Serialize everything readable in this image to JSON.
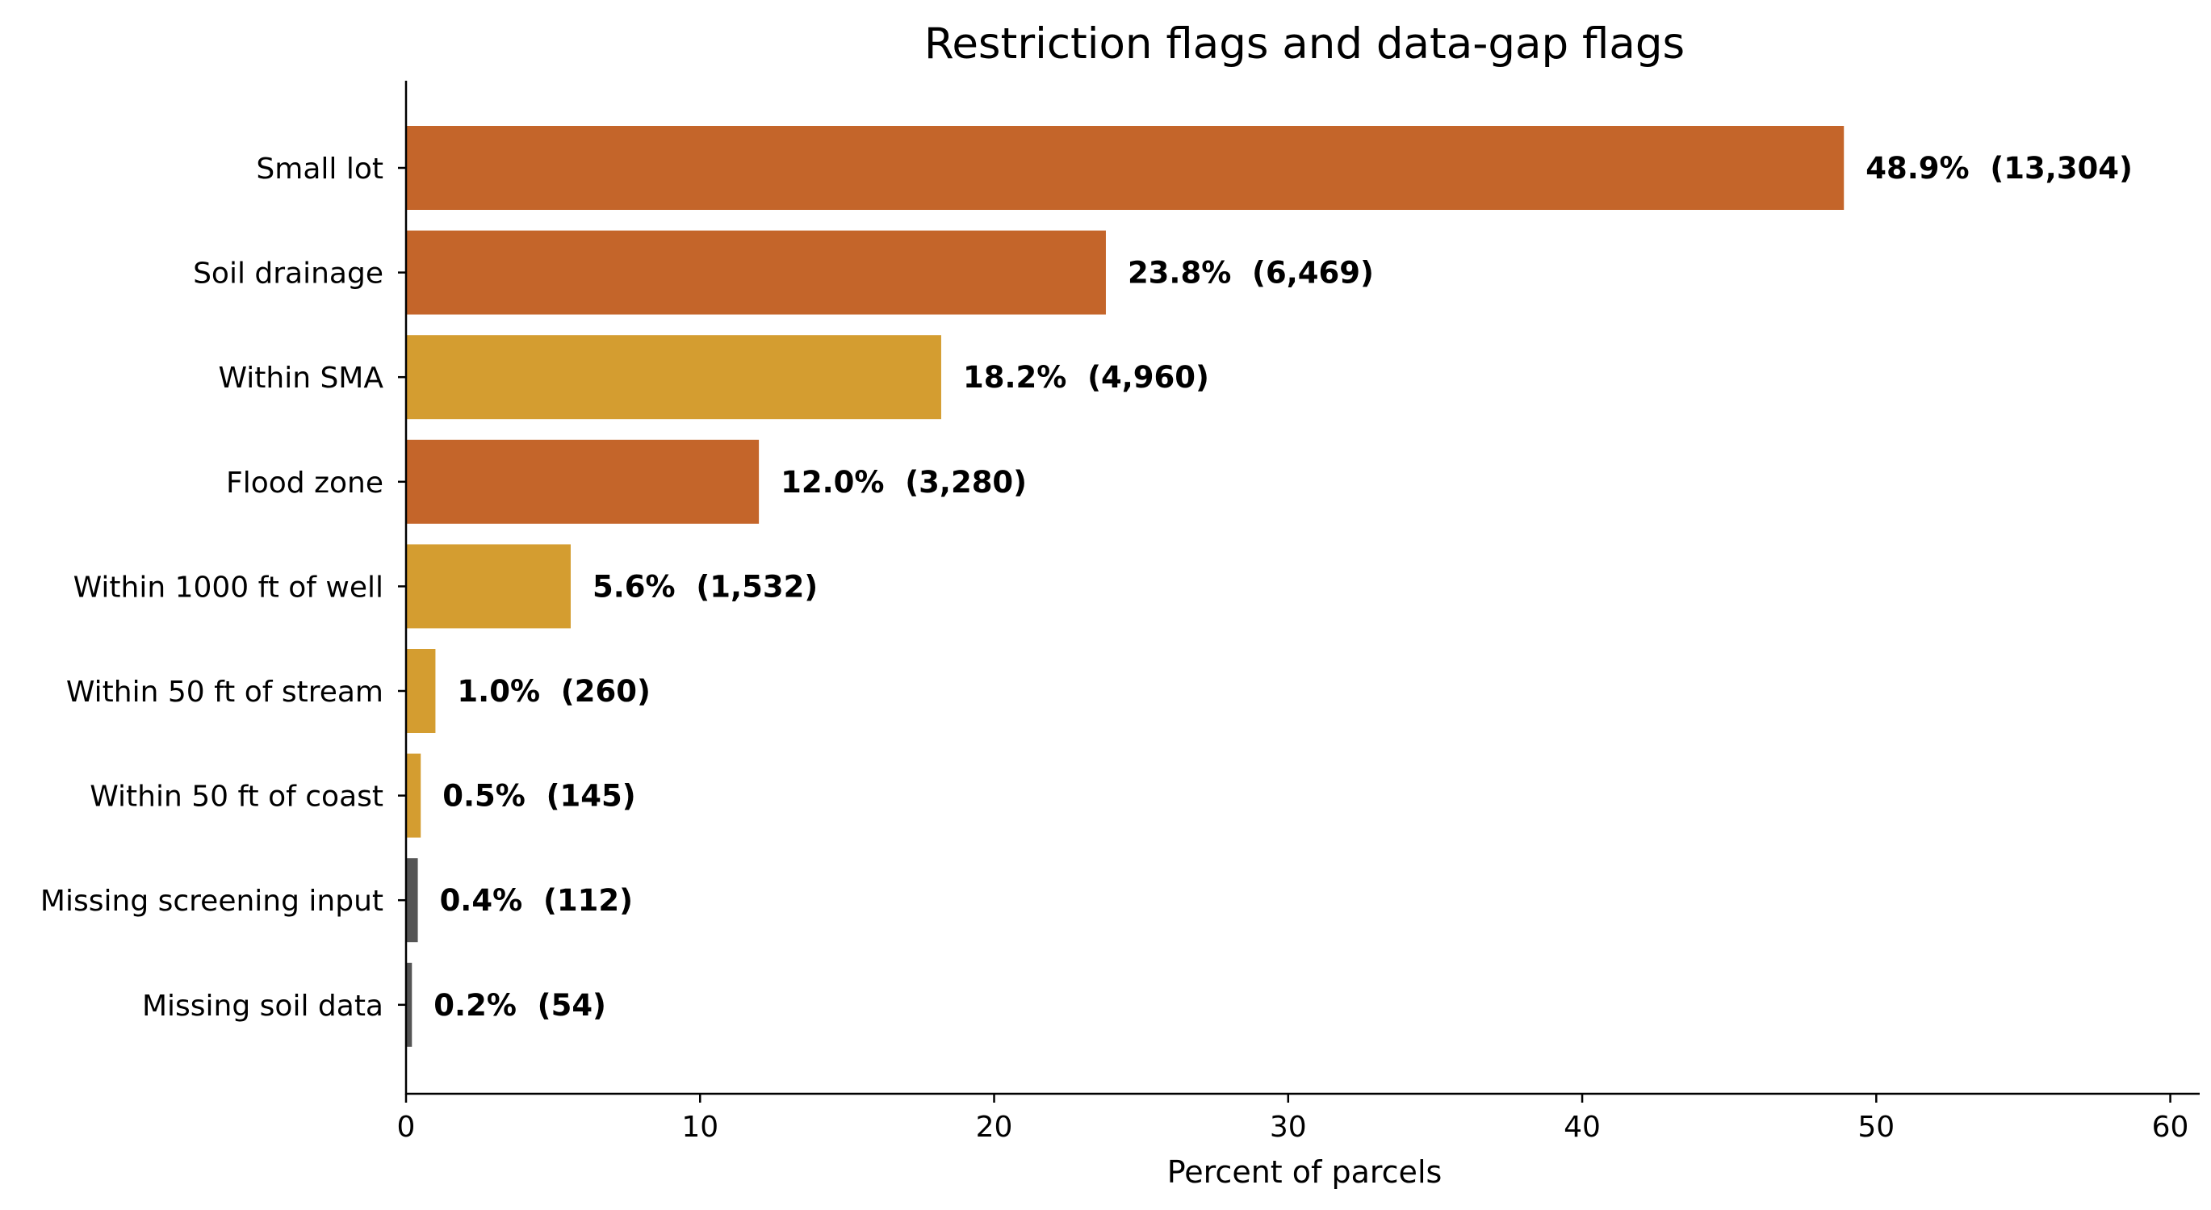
{
  "chart_data": {
    "type": "bar",
    "orientation": "horizontal",
    "title": "Restriction flags and data-gap flags",
    "xlabel": "Percent of parcels",
    "ylabel": "",
    "xlim": [
      0,
      61
    ],
    "xticks": [
      0,
      10,
      20,
      30,
      40,
      50,
      60
    ],
    "grid": false,
    "categories": [
      "Small lot",
      "Soil drainage",
      "Within SMA",
      "Flood zone",
      "Within 1000 ft of well",
      "Within 50 ft of stream",
      "Within 50 ft of coast",
      "Missing screening input",
      "Missing soil data"
    ],
    "values": [
      48.9,
      23.8,
      18.2,
      12.0,
      5.6,
      1.0,
      0.5,
      0.4,
      0.2
    ],
    "counts": [
      "13,304",
      "6,469",
      "4,960",
      "3,280",
      "1,532",
      "260",
      "145",
      "112",
      "54"
    ],
    "data_labels": [
      "48.9%  (13,304)",
      "23.8%  (6,469)",
      "18.2%  (4,960)",
      "12.0%  (3,280)",
      "5.6%  (1,532)",
      "1.0%  (260)",
      "0.5%  (145)",
      "0.4%  (112)",
      "0.2%  (54)"
    ],
    "colors": [
      "#c4652a",
      "#c4652a",
      "#d49d30",
      "#c4652a",
      "#d49d30",
      "#d49d30",
      "#d49d30",
      "#555555",
      "#555555"
    ]
  }
}
